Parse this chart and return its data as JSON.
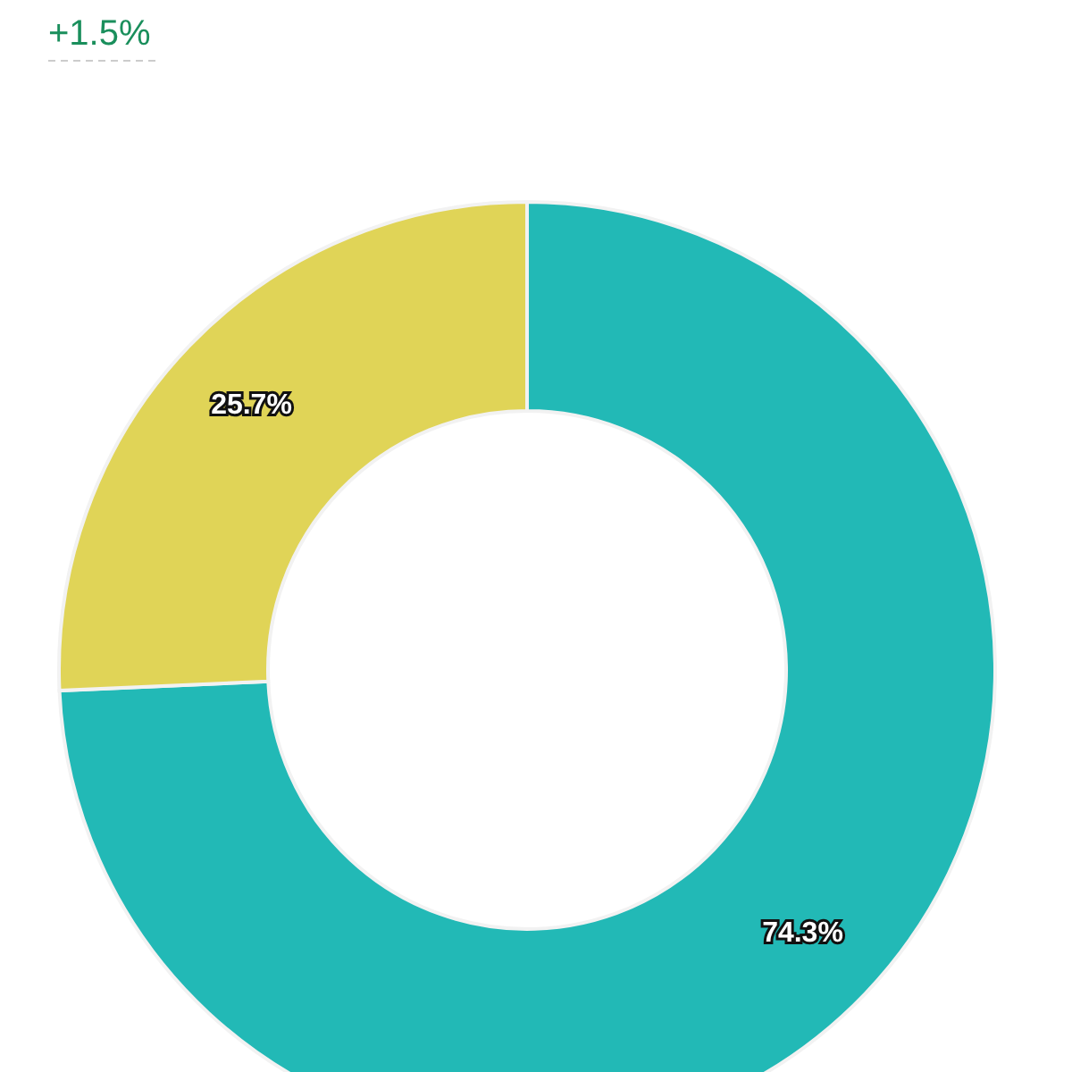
{
  "chart_data": {
    "type": "donut",
    "categories": [
      null,
      null
    ],
    "values": [
      74.3,
      25.7
    ],
    "colors": [
      "#22b9b6",
      "#e0d457"
    ],
    "value_labels": [
      "74.3%",
      "25.7%"
    ],
    "annotations": [
      "+1.5%"
    ]
  }
}
